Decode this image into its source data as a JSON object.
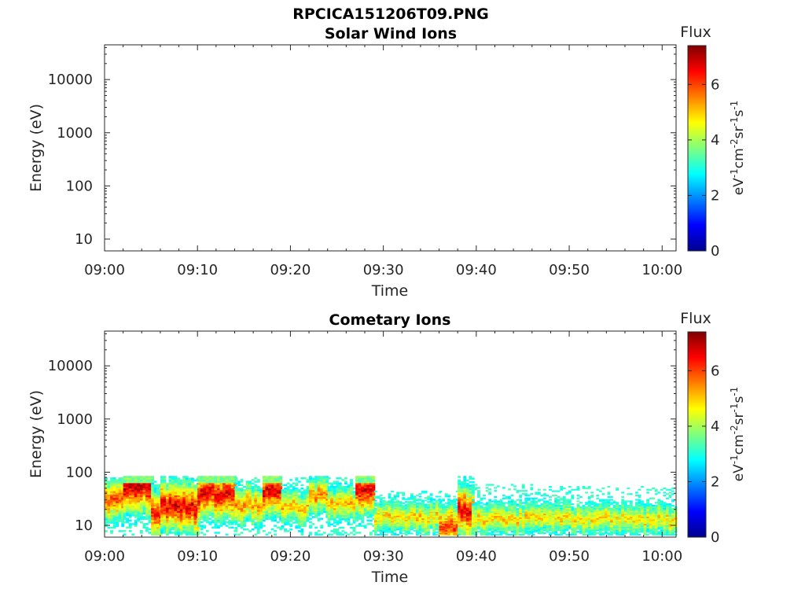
{
  "figure": {
    "title_main": "RPCICA151206T09.PNG"
  },
  "chart_data": [
    {
      "type": "heatmap",
      "title": "Solar Wind Ions",
      "xlabel": "Time",
      "ylabel": "Energy (eV)",
      "x_ticks": [
        "09:00",
        "09:10",
        "09:20",
        "09:30",
        "09:40",
        "09:50",
        "10:00"
      ],
      "x_range_minutes": [
        0,
        61.5
      ],
      "y_scale": "log",
      "y_ticks": [
        "10",
        "100",
        "1000",
        "10000"
      ],
      "y_range": [
        6,
        45000
      ],
      "colorbar": {
        "label": "Flux",
        "units": "eV-1cm-2sr-1s-1",
        "ticks": [
          "0",
          "2",
          "4",
          "6"
        ],
        "range": [
          0,
          7.4
        ],
        "colormap": "jet"
      },
      "segments": []
    },
    {
      "type": "heatmap",
      "title": "Cometary Ions",
      "xlabel": "Time",
      "ylabel": "Energy (eV)",
      "x_ticks": [
        "09:00",
        "09:10",
        "09:20",
        "09:30",
        "09:40",
        "09:50",
        "10:00"
      ],
      "x_range_minutes": [
        0,
        61.5
      ],
      "y_scale": "log",
      "y_ticks": [
        "10",
        "100",
        "1000",
        "10000"
      ],
      "y_range": [
        6,
        45000
      ],
      "colorbar": {
        "label": "Flux",
        "units": "eV-1cm-2sr-1s-1",
        "ticks": [
          "0",
          "2",
          "4",
          "6"
        ],
        "range": [
          0,
          7.4
        ],
        "colormap": "jet"
      },
      "segments": [
        {
          "t0": 0,
          "t1": 2,
          "peak_eV": 30,
          "peak_flux": 6.0,
          "top_eV": 80
        },
        {
          "t0": 2,
          "t1": 5,
          "peak_eV": 55,
          "peak_flux": 7.0,
          "top_eV": 85
        },
        {
          "t0": 5,
          "t1": 6,
          "peak_eV": 15,
          "peak_flux": 6.5,
          "top_eV": 80
        },
        {
          "t0": 6,
          "t1": 10,
          "peak_eV": 22,
          "peak_flux": 6.8,
          "top_eV": 85
        },
        {
          "t0": 10,
          "t1": 14,
          "peak_eV": 40,
          "peak_flux": 6.8,
          "top_eV": 85
        },
        {
          "t0": 14,
          "t1": 17,
          "peak_eV": 25,
          "peak_flux": 5.5,
          "top_eV": 80
        },
        {
          "t0": 17,
          "t1": 19,
          "peak_eV": 45,
          "peak_flux": 6.8,
          "top_eV": 85
        },
        {
          "t0": 19,
          "t1": 22,
          "peak_eV": 22,
          "peak_flux": 5.2,
          "top_eV": 80
        },
        {
          "t0": 22,
          "t1": 24,
          "peak_eV": 35,
          "peak_flux": 5.6,
          "top_eV": 85
        },
        {
          "t0": 24,
          "t1": 27,
          "peak_eV": 25,
          "peak_flux": 5.2,
          "top_eV": 80
        },
        {
          "t0": 27,
          "t1": 29,
          "peak_eV": 45,
          "peak_flux": 6.8,
          "top_eV": 85
        },
        {
          "t0": 29,
          "t1": 36,
          "peak_eV": 14,
          "peak_flux": 5.0,
          "top_eV": 45
        },
        {
          "t0": 36,
          "t1": 38,
          "peak_eV": 10,
          "peak_flux": 6.2,
          "top_eV": 45
        },
        {
          "t0": 38,
          "t1": 39.5,
          "peak_eV": 18,
          "peak_flux": 6.8,
          "top_eV": 85
        },
        {
          "t0": 39.5,
          "t1": 46,
          "peak_eV": 13,
          "peak_flux": 5.0,
          "top_eV": 60
        },
        {
          "t0": 46,
          "t1": 61.5,
          "peak_eV": 13,
          "peak_flux": 4.9,
          "top_eV": 55
        }
      ]
    }
  ]
}
